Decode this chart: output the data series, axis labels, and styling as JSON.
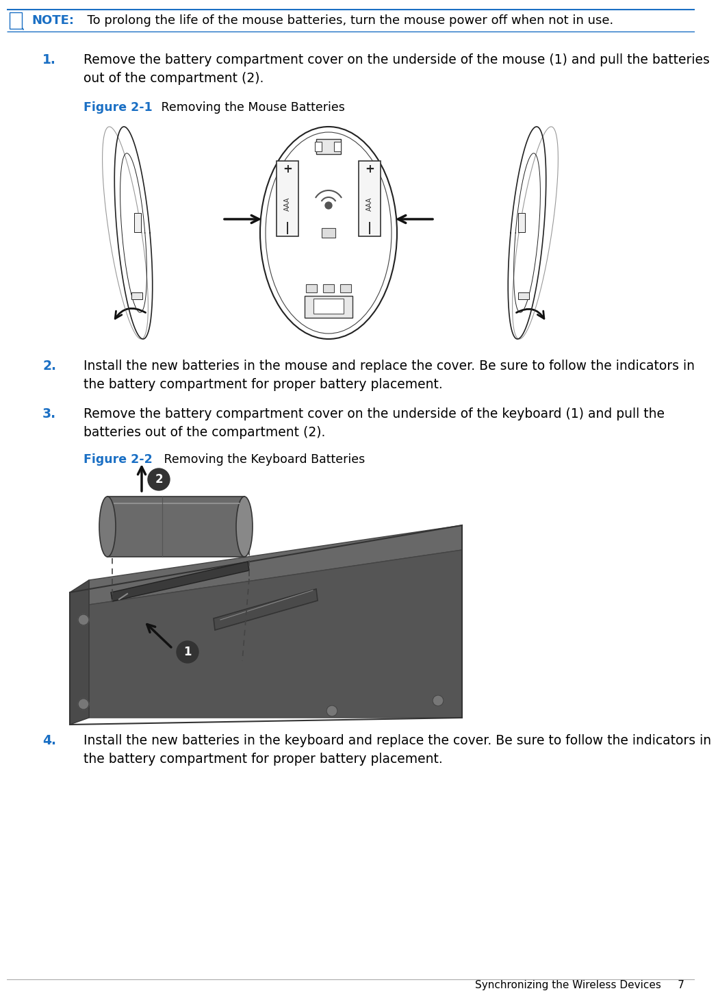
{
  "bg_color": "#ffffff",
  "note_text_bold": "NOTE:",
  "note_text_body": "  To prolong the life of the mouse batteries, turn the mouse power off when not in use.",
  "step1_num": "1.",
  "step1_text": "Remove the battery compartment cover on the underside of the mouse (1) and pull the batteries\nout of the compartment (2).",
  "fig1_label_bold": "Figure 2-1",
  "fig1_label_body": " Removing the Mouse Batteries",
  "step2_num": "2.",
  "step2_text": "Install the new batteries in the mouse and replace the cover. Be sure to follow the indicators in\nthe battery compartment for proper battery placement.",
  "step3_num": "3.",
  "step3_text": "Remove the battery compartment cover on the underside of the keyboard (1) and pull the\nbatteries out of the compartment (2).",
  "fig2_label_bold": "Figure 2-2",
  "fig2_label_body": " Removing the Keyboard Batteries",
  "step4_num": "4.",
  "step4_text": "Install the new batteries in the keyboard and replace the cover. Be sure to follow the indicators in\nthe battery compartment for proper battery placement.",
  "footer_text": "Synchronizing the Wireless Devices     7",
  "blue_color": "#1a6fc4",
  "black_color": "#000000",
  "page_width": 10.05,
  "page_height": 14.46
}
